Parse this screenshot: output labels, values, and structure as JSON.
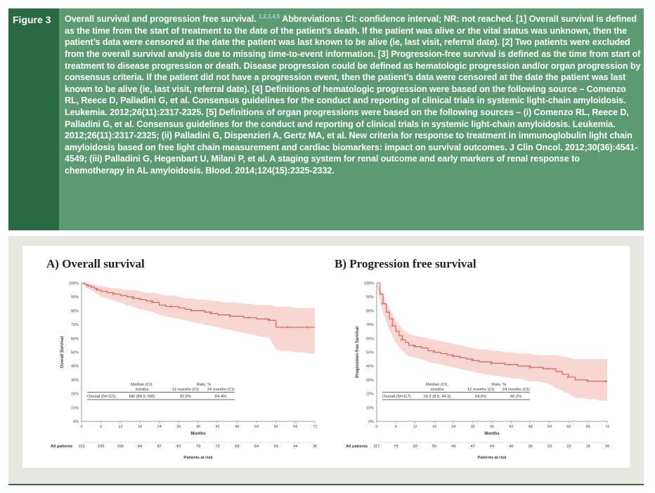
{
  "figure_label": "Figure 3",
  "caption": {
    "title": "Overall survival and progression free survival.",
    "refs": "1,2,3,4,5",
    "body": "Abbreviations: CI: confidence interval; NR: not reached. [1] Overall survival is defined as the time from the start of treatment to the date of the patient’s death. If the patient was alive or the vital status was unknown, then the patient’s data were censored at the date the patient was last known to be alive (ie, last visit, referral date). [2] Two patients were excluded from the overall survival analysis due to missing time-to-event information. [3] Progression-free survival is defined as the time from start of treatment to disease progression or death. Disease progression could be defined as hematologic progression and/or organ progression by consensus criteria. If the patient did not have a progression event, then the patient’s data were censored at the date the patient was last known to be alive (ie, last visit, referral date). [4] Definitions of hematologic progression were based on the following source – Comenzo RL, Reece D, Palladini G, et al. Consensus guidelines for the conduct and reporting of clinical trials in systemic light-chain amyloidosis. Leukemia. 2012;26(11):2317-2325. [5] Definitions of organ progressions were based on the following sources – (i) Comenzo RL, Reece D, Palladini G, et al. Consensus guidelines for the conduct and reporting of clinical trials in systemic light-chain amyloidosis. Leukemia. 2012;26(11):2317-2325; (ii) Palladini G, Dispenzieri A, Gertz MA, et al. New criteria for response to treatment in immunoglobulin light chain amyloidosis based on free light chain measurement and cardiac biomarkers: impact on survival outcomes. J Clin Oncol. 2012;30(36):4541-4549; (iii) Palladini G, Hegenbart U, Milani P, et al. A staging system for renal outcome and early markers of renal response to chemotherapy in AL amyloidosis. Blood. 2014;124(15):2325-2332."
  },
  "colors": {
    "header_bg": "#5c9a72",
    "label_bg": "#2a6a42",
    "curve": "#d9534f",
    "band": "#f6c9c4"
  },
  "chart_data": [
    {
      "type": "line",
      "title": "A) Overall survival",
      "xlabel": "Months",
      "ylabel": "Overall Survival",
      "xlim": [
        0,
        72
      ],
      "ylim": [
        0,
        100
      ],
      "x_ticks": [
        "0",
        "6",
        "12",
        "18",
        "24",
        "30",
        "36",
        "42",
        "48",
        "54",
        "60",
        "66",
        "72"
      ],
      "y_ticks": [
        "0%",
        "10%",
        "20%",
        "30%",
        "40%",
        "50%",
        "60%",
        "70%",
        "80%",
        "90%",
        "100%"
      ],
      "series": [
        {
          "x": [
            0,
            1,
            2,
            3,
            4,
            5,
            6,
            8,
            10,
            12,
            14,
            16,
            18,
            20,
            22,
            24,
            26,
            28,
            30,
            32,
            34,
            36,
            38,
            40,
            42,
            44,
            46,
            48,
            50,
            52,
            54,
            56,
            58,
            60,
            62,
            64,
            66,
            68,
            70,
            72
          ],
          "y": [
            100,
            99,
            98,
            97,
            96,
            95,
            94,
            93,
            92,
            91,
            90,
            89,
            88,
            87,
            86,
            84,
            83,
            83,
            82,
            81,
            80,
            80,
            79,
            78,
            77,
            77,
            76,
            76,
            75,
            75,
            74,
            74,
            73,
            68,
            68,
            68,
            68,
            68,
            68,
            68
          ]
        }
      ],
      "ci_lower": [
        100,
        98,
        96,
        95,
        93,
        92,
        90,
        89,
        87,
        86,
        84,
        83,
        81,
        80,
        79,
        77,
        76,
        75,
        74,
        73,
        72,
        71,
        70,
        69,
        68,
        67,
        66,
        65,
        64,
        63,
        62,
        61,
        60,
        52,
        51,
        51,
        50,
        50,
        49,
        49
      ],
      "ci_upper": [
        100,
        100,
        100,
        99,
        99,
        98,
        98,
        97,
        96,
        96,
        95,
        95,
        94,
        93,
        93,
        92,
        91,
        91,
        90,
        89,
        89,
        88,
        88,
        87,
        87,
        86,
        86,
        86,
        85,
        85,
        84,
        84,
        84,
        83,
        83,
        83,
        82,
        82,
        82,
        82
      ],
      "table": {
        "header1": [
          "Median (CI),",
          "Rate, %"
        ],
        "header2": [
          "months",
          "12 months (CI)",
          "24 months (CI)"
        ],
        "row": [
          "Overall (N=115)",
          "NR (89.9, NR)",
          "92.0%",
          "84.4%"
        ]
      },
      "risk_label": "All patients",
      "risk_title": "Patients at risk",
      "at_risk": [
        "115",
        "105",
        "100",
        "94",
        "87",
        "83",
        "79",
        "72",
        "68",
        "64",
        "53",
        "44",
        "36"
      ]
    },
    {
      "type": "line",
      "title": "B) Progression free survival",
      "xlabel": "Months",
      "ylabel": "Progression-free Survival",
      "xlim": [
        0,
        72
      ],
      "ylim": [
        0,
        100
      ],
      "x_ticks": [
        "0",
        "6",
        "12",
        "18",
        "24",
        "30",
        "36",
        "42",
        "48",
        "54",
        "60",
        "66",
        "72"
      ],
      "y_ticks": [
        "0%",
        "10%",
        "20%",
        "30%",
        "40%",
        "50%",
        "60%",
        "70%",
        "80%",
        "90%",
        "100%"
      ],
      "series": [
        {
          "x": [
            0,
            1,
            2,
            3,
            4,
            5,
            6,
            7,
            8,
            9,
            10,
            12,
            14,
            16,
            18,
            20,
            22,
            24,
            26,
            28,
            30,
            32,
            34,
            36,
            38,
            40,
            42,
            44,
            46,
            48,
            50,
            52,
            54,
            56,
            58,
            60,
            62,
            64,
            66,
            68,
            70,
            72
          ],
          "y": [
            100,
            92,
            85,
            79,
            74,
            69,
            65,
            62,
            59,
            57,
            55,
            54,
            53,
            51,
            50,
            49,
            48,
            47,
            46,
            45,
            44,
            43,
            43,
            42,
            42,
            41,
            41,
            40,
            40,
            39,
            39,
            38,
            38,
            36,
            34,
            32,
            30,
            30,
            29,
            29,
            29,
            29
          ]
        }
      ],
      "ci_lower": [
        100,
        87,
        79,
        72,
        66,
        61,
        57,
        54,
        51,
        49,
        47,
        46,
        45,
        43,
        42,
        41,
        40,
        39,
        38,
        37,
        36,
        35,
        34,
        33,
        33,
        32,
        31,
        31,
        30,
        29,
        29,
        28,
        27,
        24,
        22,
        20,
        17,
        17,
        16,
        16,
        15,
        15
      ],
      "ci_upper": [
        100,
        96,
        91,
        86,
        82,
        77,
        73,
        70,
        67,
        65,
        63,
        62,
        61,
        60,
        59,
        58,
        57,
        56,
        55,
        54,
        53,
        52,
        52,
        51,
        51,
        50,
        50,
        49,
        49,
        49,
        48,
        48,
        48,
        48,
        47,
        46,
        45,
        45,
        45,
        45,
        45,
        45
      ],
      "table": {
        "header1": [
          "Median (CI),",
          "Rate, %"
        ],
        "header2": [
          "months",
          "12 months (CI)",
          "24 months (CI)"
        ],
        "row": [
          "Overall (N=117)",
          "19.2 (8.5, 44.9)",
          "54.6%",
          "46.2%"
        ]
      },
      "risk_label": "All patients",
      "risk_title": "Patients at risk",
      "at_risk": [
        "117",
        "75",
        "60",
        "55",
        "49",
        "47",
        "44",
        "40",
        "36",
        "33",
        "23",
        "19",
        "16"
      ]
    }
  ]
}
